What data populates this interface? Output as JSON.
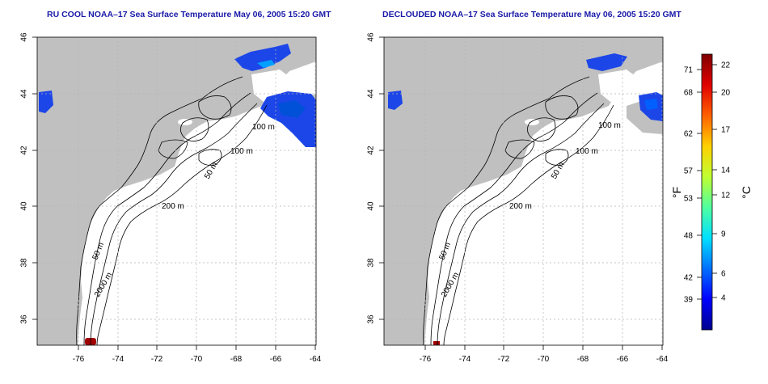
{
  "panels": [
    {
      "title": "RU COOL NOAA–17 Sea Surface Temperature May 06, 2005 15:20 GMT",
      "contour_labels": [
        "100 m",
        "100 m",
        "50 m",
        "200 m",
        "50 m",
        "2000 m"
      ],
      "x_ticks": [
        "-76",
        "-74",
        "-72",
        "-70",
        "-68",
        "-66",
        "-64"
      ],
      "y_ticks": [
        "46",
        "44",
        "42",
        "40",
        "38",
        "36"
      ]
    },
    {
      "title": "DECLOUDED NOAA–17 Sea Surface Temperature May 06, 2005 15:20 GMT",
      "contour_labels": [
        "100 m",
        "100 m",
        "50 m",
        "200 m",
        "50 m",
        "2000 m"
      ],
      "x_ticks": [
        "-76",
        "-74",
        "-72",
        "-70",
        "-68",
        "-66",
        "-64"
      ],
      "y_ticks": [
        "46",
        "44",
        "42",
        "40",
        "38",
        "36"
      ]
    }
  ],
  "colorbar": {
    "f_label": "°F",
    "c_label": "°C",
    "f_ticks": [
      "71",
      "68",
      "62",
      "57",
      "53",
      "48",
      "42",
      "39"
    ],
    "c_ticks": [
      "22",
      "20",
      "17",
      "14",
      "12",
      "9",
      "6",
      "4"
    ],
    "colors": [
      "#00008f",
      "#0000ff",
      "#0070ff",
      "#00e0ff",
      "#50ffa0",
      "#c0ff30",
      "#ffd000",
      "#ff6000",
      "#e00000",
      "#800000"
    ]
  },
  "map_colors": {
    "land": "#c0c0c0",
    "ocean": "#ffffff",
    "grid": "#b4b4b4"
  }
}
